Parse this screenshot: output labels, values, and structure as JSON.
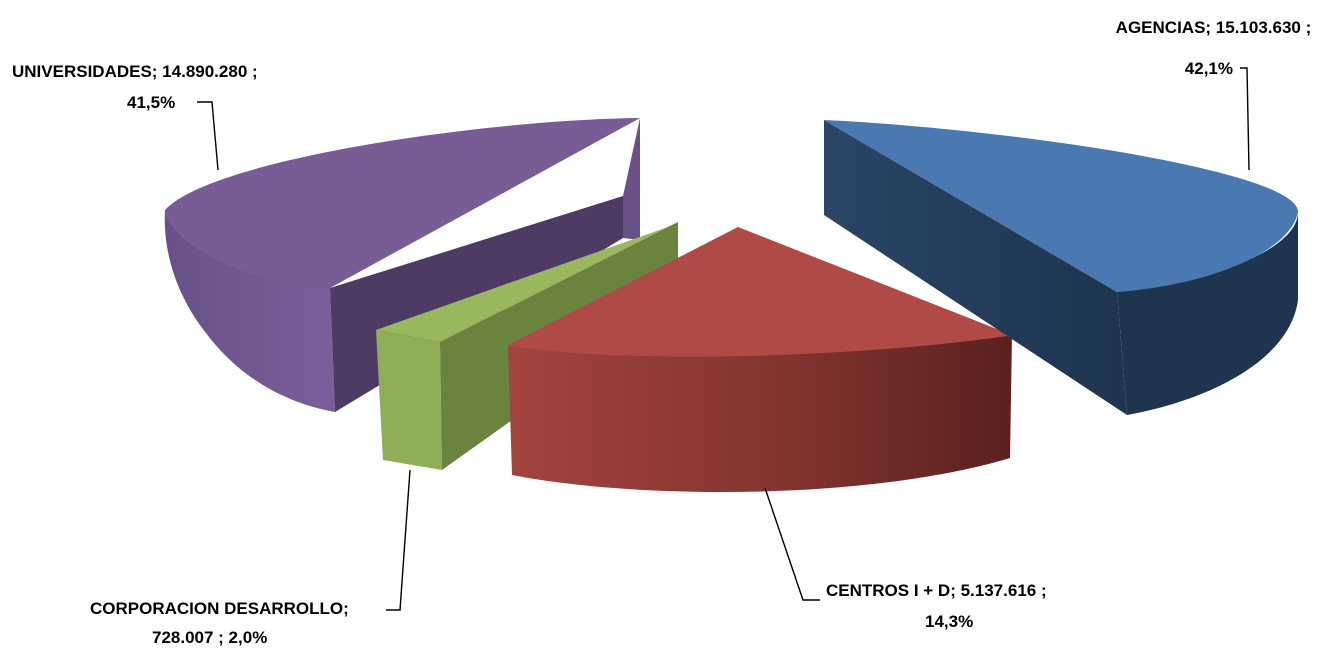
{
  "chart_data": {
    "type": "pie",
    "title": "",
    "legend": "none",
    "slices": [
      {
        "name": "AGENCIAS",
        "value": 15103630,
        "value_label": "15.103.630",
        "percent_label": "42,1%",
        "color": "#4a78b0",
        "dark": "#1f344f"
      },
      {
        "name": "CENTROS I + D",
        "value": 5137616,
        "value_label": "5.137.616",
        "percent_label": "14,3%",
        "color": "#b04a46",
        "dark": "#5e2220"
      },
      {
        "name": "CORPORACION DESARROLLO",
        "value": 728007,
        "value_label": "728.007",
        "percent_label": "2,0%",
        "color": "#8fae56",
        "dark": "#6a8440"
      },
      {
        "name": "UNIVERSIDADES",
        "value": 14890280,
        "value_label": "14.890.280",
        "percent_label": "41,5%",
        "color": "#785c96",
        "dark": "#4e3b64"
      }
    ]
  }
}
